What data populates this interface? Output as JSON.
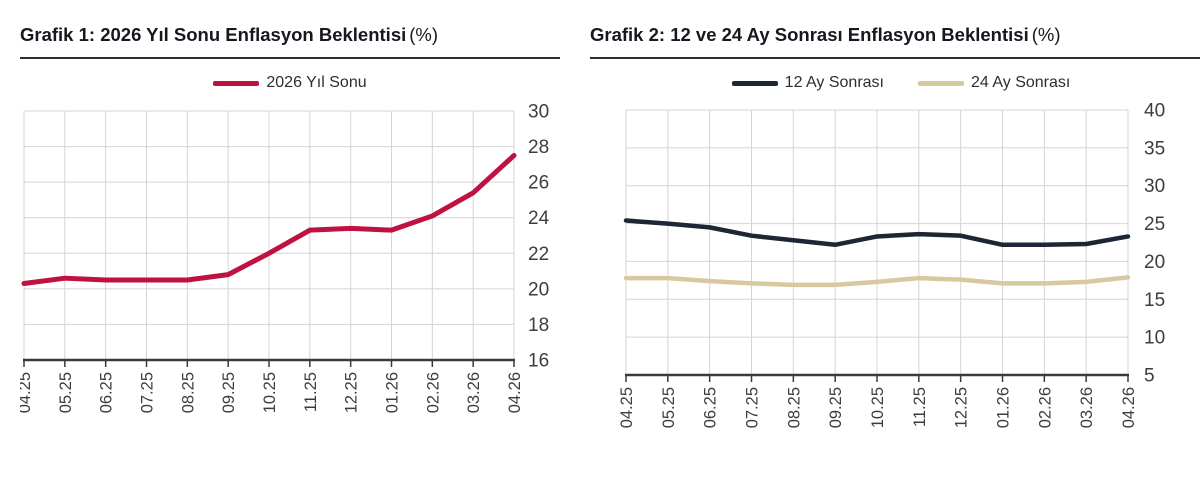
{
  "chart_data": [
    {
      "type": "line",
      "title": "Grafik 1: 2026 Yıl Sonu Enflasyon Beklentisi (%)",
      "title_bold": "Grafik 1: 2026 Yıl Sonu Enflasyon Beklentisi",
      "title_unit": "(%)",
      "xlabel": "",
      "ylabel": "",
      "categories": [
        "04.25",
        "05.25",
        "06.25",
        "07.25",
        "08.25",
        "09.25",
        "10.25",
        "11.25",
        "12.25",
        "01.26",
        "02.26",
        "03.26",
        "04.26"
      ],
      "series": [
        {
          "name": "2026 Yıl Sonu",
          "color": "#c01240",
          "values": [
            20.3,
            20.6,
            20.5,
            20.5,
            20.5,
            20.8,
            22.0,
            23.3,
            23.4,
            23.3,
            24.1,
            25.4,
            27.5
          ]
        }
      ],
      "ylim": [
        16,
        30
      ],
      "yticks": [
        16,
        18,
        20,
        22,
        24,
        26,
        28,
        30
      ],
      "grid": true,
      "legend_position": "top-center",
      "y_axis_side": "right",
      "grid_color": "#d4d4d4",
      "axis_color": "#3a3a3a",
      "tick_label_color": "#3d3d3d"
    },
    {
      "type": "line",
      "title": "Grafik 2: 12 ve 24 Ay Sonrası Enflasyon Beklentisi (%)",
      "title_bold": "Grafik 2: 12 ve 24 Ay Sonrası Enflasyon Beklentisi",
      "title_unit": "(%)",
      "xlabel": "",
      "ylabel": "",
      "categories": [
        "04.25",
        "05.25",
        "06.25",
        "07.25",
        "08.25",
        "09.25",
        "10.25",
        "11.25",
        "12.25",
        "01.26",
        "02.26",
        "03.26",
        "04.26"
      ],
      "series": [
        {
          "name": "12 Ay Sonrası",
          "color": "#1c2634",
          "values": [
            25.4,
            25.0,
            24.5,
            23.4,
            22.8,
            22.2,
            23.3,
            23.6,
            23.4,
            22.2,
            22.2,
            22.3,
            23.3
          ]
        },
        {
          "name": "24 Ay Sonrası",
          "color": "#d8c89f",
          "values": [
            17.8,
            17.8,
            17.4,
            17.1,
            16.9,
            16.9,
            17.3,
            17.8,
            17.6,
            17.1,
            17.1,
            17.3,
            17.9
          ]
        }
      ],
      "ylim": [
        5,
        40
      ],
      "yticks": [
        5,
        10,
        15,
        20,
        25,
        30,
        35,
        40
      ],
      "grid": true,
      "legend_position": "top-center",
      "y_axis_side": "right",
      "grid_color": "#d4d4d4",
      "axis_color": "#3a3a3a",
      "tick_label_color": "#3d3d3d"
    }
  ]
}
